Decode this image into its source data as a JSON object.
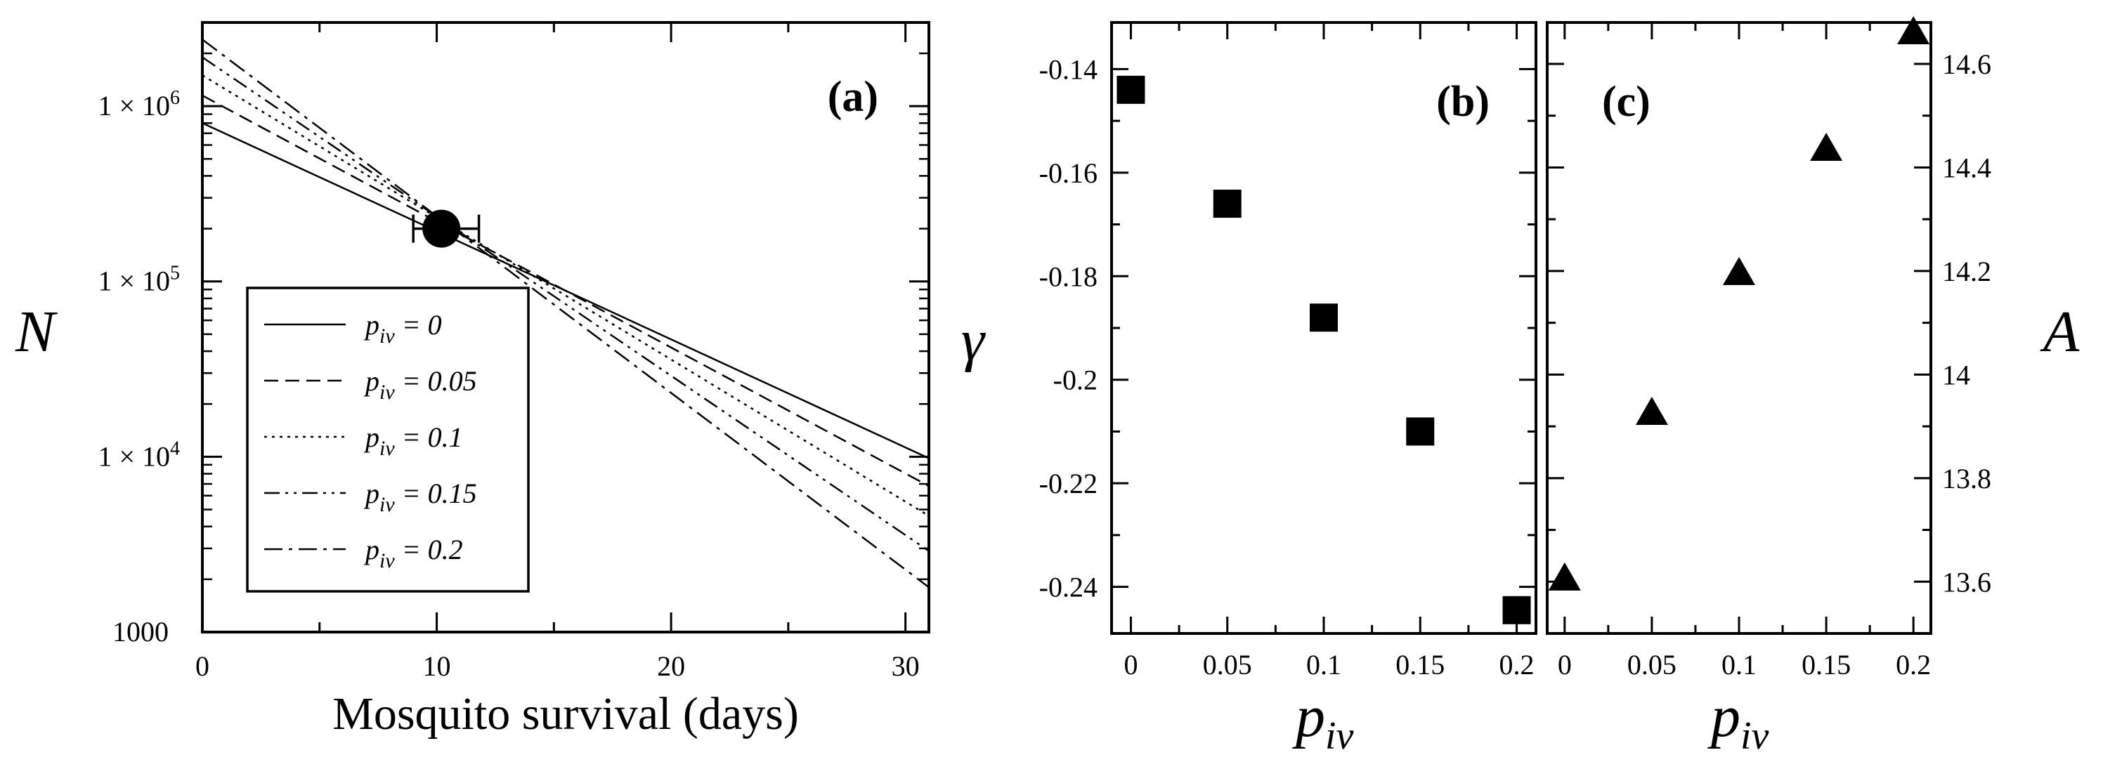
{
  "chart_data": [
    {
      "id": "a",
      "type": "line",
      "panel_label": "(a)",
      "xlabel": "Mosquito survival (days)",
      "ylabel": "N",
      "xlim": [
        0,
        31
      ],
      "ylim": [
        1000,
        3000000
      ],
      "yscale": "log",
      "x_ticks": [
        0,
        10,
        20,
        30
      ],
      "x_tick_labels": [
        "0",
        "10",
        "20",
        "30"
      ],
      "y_ticks": [
        1000,
        10000,
        100000,
        1000000
      ],
      "y_tick_labels": [
        "1000",
        "1 × 10",
        "1 × 10",
        "1 × 10"
      ],
      "y_tick_exponents": [
        "",
        "4",
        "5",
        "6"
      ],
      "legend_position": "bottom-left",
      "legend_prefix": "p",
      "legend_sub": "iv",
      "series": [
        {
          "name": "p_iv = 0",
          "label_rest": " = 0",
          "dash": "solid",
          "x": [
            0,
            31
          ],
          "y": [
            800000,
            9800
          ]
        },
        {
          "name": "p_iv = 0.05",
          "label_rest": " = 0.05",
          "dash": "dashed",
          "x": [
            0,
            31
          ],
          "y": [
            1150000,
            6800
          ]
        },
        {
          "name": "p_iv = 0.1",
          "label_rest": " = 0.1",
          "dash": "dotted",
          "x": [
            0,
            31
          ],
          "y": [
            1500000,
            4600
          ]
        },
        {
          "name": "p_iv = 0.15",
          "label_rest": " = 0.15",
          "dash": "dashdotdot",
          "x": [
            0,
            31
          ],
          "y": [
            1900000,
            2900
          ]
        },
        {
          "name": "p_iv = 0.2",
          "label_rest": " = 0.2",
          "dash": "dashdot",
          "x": [
            0,
            31
          ],
          "y": [
            2400000,
            1800
          ]
        }
      ],
      "point": {
        "x": 10.2,
        "y": 200000,
        "xerr": [
          9.0,
          11.8
        ]
      }
    },
    {
      "id": "b",
      "type": "scatter",
      "panel_label": "(b)",
      "xlabel": "p",
      "xlabel_sub": "iv",
      "ylabel": "γ",
      "marker": "square",
      "xlim": [
        -0.01,
        0.21
      ],
      "ylim": [
        -0.249,
        -0.131
      ],
      "x_ticks": [
        0,
        0.05,
        0.1,
        0.15,
        0.2
      ],
      "x_tick_labels": [
        "0",
        "0.05",
        "0.1",
        "0.15",
        "0.2"
      ],
      "y_ticks": [
        -0.14,
        -0.16,
        -0.18,
        -0.2,
        -0.22,
        -0.24
      ],
      "y_tick_labels": [
        "-0.14",
        "-0.16",
        "-0.18",
        "-0.2",
        "-0.22",
        "-0.24"
      ],
      "x": [
        0,
        0.05,
        0.1,
        0.15,
        0.2
      ],
      "y": [
        -0.144,
        -0.166,
        -0.188,
        -0.21,
        -0.2445
      ]
    },
    {
      "id": "c",
      "type": "scatter",
      "panel_label": "(c)",
      "xlabel": "p",
      "xlabel_sub": "iv",
      "ylabel": "A",
      "marker": "triangle",
      "xlim": [
        -0.01,
        0.21
      ],
      "ylim": [
        13.5,
        14.68
      ],
      "x_ticks": [
        0,
        0.05,
        0.1,
        0.15,
        0.2
      ],
      "x_tick_labels": [
        "0",
        "0.05",
        "0.1",
        "0.15",
        "0.2"
      ],
      "y_ticks": [
        13.6,
        13.8,
        14.0,
        14.2,
        14.4,
        14.6
      ],
      "y_tick_labels": [
        "13.6",
        "13.8",
        "14",
        "14.2",
        "14.4",
        "14.6"
      ],
      "x": [
        0,
        0.05,
        0.1,
        0.15,
        0.2
      ],
      "y": [
        13.61,
        13.93,
        14.2,
        14.44,
        14.665
      ]
    }
  ]
}
